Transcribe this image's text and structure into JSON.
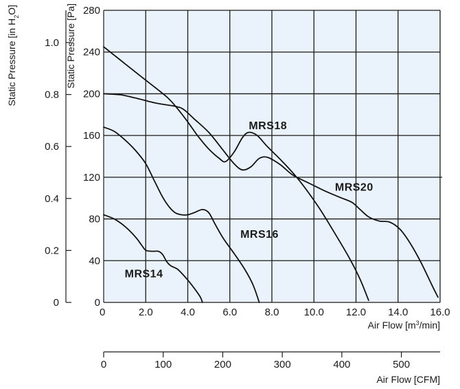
{
  "colors": {
    "plot_bg": "#eaf3fb",
    "ink": "#1a1a1a"
  },
  "chart_data": {
    "type": "line",
    "x_axis": {
      "label_prefix": "Air Flow [m",
      "label_sup": "3",
      "label_suffix": "/min]",
      "range": [
        0,
        16
      ],
      "ticks": [
        {
          "value": 0,
          "label": "0"
        },
        {
          "value": 2,
          "label": "2.0"
        },
        {
          "value": 4,
          "label": "4.0"
        },
        {
          "value": 6,
          "label": "6.0"
        },
        {
          "value": 8,
          "label": "8.0"
        },
        {
          "value": 10,
          "label": "10.0"
        },
        {
          "value": 12,
          "label": "12.0"
        },
        {
          "value": 14,
          "label": "14.0"
        },
        {
          "value": 16,
          "label": "16.0"
        }
      ]
    },
    "x2_axis": {
      "label": "Air Flow [CFM]",
      "ticks": [
        "0",
        "100",
        "200",
        "300",
        "400",
        "500"
      ]
    },
    "y_axis": {
      "label": "Static Pressure [Pa]",
      "range": [
        0,
        280
      ],
      "ticks": [
        {
          "value": 0,
          "label": "0"
        },
        {
          "value": 40,
          "label": "40"
        },
        {
          "value": 80,
          "label": "80"
        },
        {
          "value": 120,
          "label": "120"
        },
        {
          "value": 160,
          "label": "160"
        },
        {
          "value": 200,
          "label": "200"
        },
        {
          "value": 240,
          "label": "240"
        },
        {
          "value": 280,
          "label": "280"
        }
      ]
    },
    "y2_axis": {
      "label_prefix": "Static Pressure [in H",
      "label_sub": "2",
      "label_suffix": "O]",
      "ticks": [
        "0",
        "0.2",
        "0.4",
        "0.6",
        "0.8",
        "1.0"
      ]
    },
    "grid": true,
    "series": [
      {
        "name": "MRS14",
        "x": [
          0,
          0.5,
          1.0,
          1.5,
          1.8,
          2.0,
          2.3,
          2.6,
          2.8,
          3.0,
          3.2,
          3.5,
          3.8,
          4.1,
          4.4,
          4.6,
          4.7
        ],
        "y": [
          84,
          80,
          73,
          63,
          55,
          50,
          49,
          49,
          46,
          39,
          35,
          32,
          26,
          19,
          11,
          5,
          0
        ]
      },
      {
        "name": "MRS16",
        "x": [
          0,
          0.5,
          1.0,
          1.5,
          2.0,
          2.4,
          2.8,
          3.1,
          3.4,
          3.7,
          4.0,
          4.3,
          4.7,
          5.0,
          5.3,
          5.7,
          6.2,
          6.7,
          7.1,
          7.4
        ],
        "y": [
          168,
          164,
          156,
          146,
          133,
          117,
          101,
          92,
          86,
          84,
          84,
          86,
          89,
          86,
          75,
          61,
          47,
          32,
          17,
          0
        ]
      },
      {
        "name": "MRS18",
        "x": [
          0,
          0.5,
          1.0,
          2.0,
          3.0,
          3.5,
          4.0,
          4.5,
          5.0,
          5.5,
          5.8,
          6.2,
          6.6,
          6.9,
          7.3,
          7.8,
          8.5,
          9.3,
          10.2,
          11.0,
          11.7,
          12.2,
          12.6
        ],
        "y": [
          245,
          237,
          229,
          213,
          197,
          186,
          173,
          159,
          147,
          138,
          135,
          144,
          158,
          163,
          160,
          149,
          135,
          117,
          92,
          66,
          42,
          22,
          2
        ]
      },
      {
        "name": "MRS20",
        "x": [
          0,
          0.8,
          1.5,
          2.5,
          3.4,
          3.8,
          4.3,
          5.0,
          5.6,
          6.2,
          6.6,
          7.0,
          7.4,
          7.8,
          8.4,
          9.0,
          9.8,
          10.5,
          11.2,
          11.8,
          12.2,
          12.6,
          13.1,
          13.6,
          14.1,
          14.6,
          15.1,
          15.6,
          15.9
        ],
        "y": [
          200,
          199,
          196,
          191,
          188,
          185,
          176,
          163,
          148,
          133,
          127,
          130,
          138,
          139,
          132,
          122,
          114,
          107,
          101,
          96,
          89,
          82,
          78,
          77,
          70,
          56,
          38,
          17,
          5
        ]
      }
    ],
    "annotations": [
      {
        "text": "MRS14",
        "x": 1.0,
        "y": 24
      },
      {
        "text": "MRS16",
        "x": 6.5,
        "y": 62
      },
      {
        "text": "MRS18",
        "x": 6.9,
        "y": 166
      },
      {
        "text": "MRS20",
        "x": 11.0,
        "y": 107
      }
    ]
  }
}
